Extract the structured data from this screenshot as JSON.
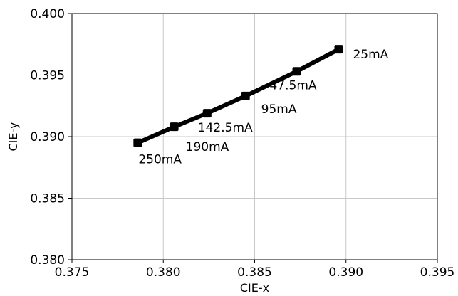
{
  "chart_data": {
    "type": "line",
    "title": "",
    "xlabel": "CIE-x",
    "ylabel": "CIE-y",
    "xlim": [
      0.375,
      0.395
    ],
    "ylim": [
      0.38,
      0.4
    ],
    "xticks": [
      0.375,
      0.38,
      0.385,
      0.39,
      0.395
    ],
    "yticks": [
      0.38,
      0.385,
      0.39,
      0.395,
      0.4
    ],
    "xtick_labels": [
      "0.375",
      "0.380",
      "0.385",
      "0.390",
      "0.395"
    ],
    "ytick_labels": [
      "0.380",
      "0.385",
      "0.390",
      "0.395",
      "0.400"
    ],
    "grid": true,
    "legend": "none",
    "line_color": "#000000",
    "marker": "square",
    "series": [
      {
        "x": [
          0.3786,
          0.3806,
          0.3824,
          0.3845,
          0.3873,
          0.3896
        ],
        "y": [
          0.3895,
          0.3908,
          0.3919,
          0.3933,
          0.3953,
          0.3971
        ],
        "point_labels": [
          "250mA",
          "190mA",
          "142.5mA",
          "95mA",
          "47.5mA",
          "25mA"
        ]
      }
    ]
  }
}
